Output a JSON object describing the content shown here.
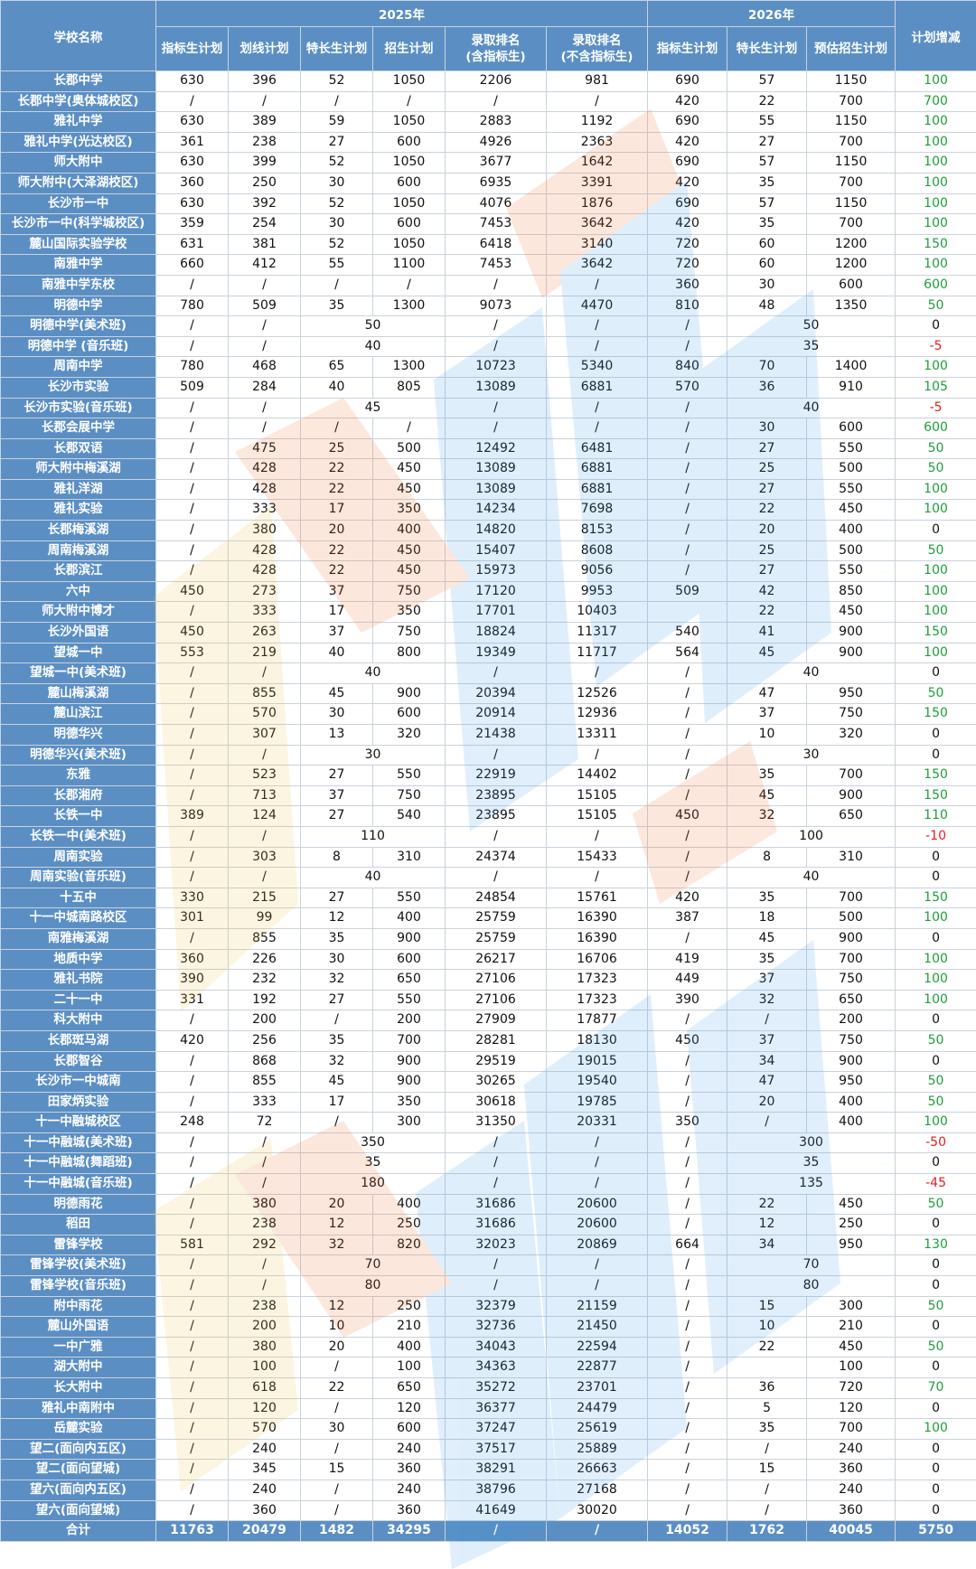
{
  "header": {
    "school_name": "学校名称",
    "year_2025": "2025年",
    "year_2026": "2026年",
    "plan_change": "计划增减",
    "cols_2025": [
      "指标生计划",
      "划线计划",
      "特长生计划",
      "招生计划",
      "录取排名\n(含指标生)",
      "录取排名\n(不含指标生)"
    ],
    "cols_2026": [
      "指标生计划",
      "特长生计划",
      "预估招生计划"
    ]
  },
  "rows": [
    [
      "长郡中学",
      "630",
      "396",
      "52",
      "1050",
      "2206",
      "981",
      "690",
      "57",
      "1150",
      "100"
    ],
    [
      "长郡中学(奥体城校区)",
      "/",
      "/",
      "/",
      "/",
      "/",
      "/",
      "420",
      "22",
      "700",
      "700"
    ],
    [
      "雅礼中学",
      "630",
      "389",
      "59",
      "1050",
      "2883",
      "1192",
      "690",
      "55",
      "1150",
      "100"
    ],
    [
      "雅礼中学(光达校区)",
      "361",
      "238",
      "27",
      "600",
      "4926",
      "2363",
      "420",
      "27",
      "700",
      "100"
    ],
    [
      "师大附中",
      "630",
      "399",
      "52",
      "1050",
      "3677",
      "1642",
      "690",
      "57",
      "1150",
      "100"
    ],
    [
      "师大附中(大泽湖校区)",
      "360",
      "250",
      "30",
      "600",
      "6935",
      "3391",
      "420",
      "35",
      "700",
      "100"
    ],
    [
      "长沙市一中",
      "630",
      "392",
      "52",
      "1050",
      "4076",
      "1876",
      "690",
      "57",
      "1150",
      "100"
    ],
    [
      "长沙市一中(科学城校区)",
      "359",
      "254",
      "30",
      "600",
      "7453",
      "3642",
      "420",
      "35",
      "700",
      "100"
    ],
    [
      "麓山国际实验学校",
      "631",
      "381",
      "52",
      "1050",
      "6418",
      "3140",
      "720",
      "60",
      "1200",
      "150"
    ],
    [
      "南雅中学",
      "660",
      "412",
      "55",
      "1100",
      "7453",
      "3642",
      "720",
      "60",
      "1200",
      "100"
    ],
    [
      "南雅中学东校",
      "/",
      "/",
      "/",
      "/",
      "/",
      "/",
      "360",
      "30",
      "600",
      "600"
    ],
    [
      "明德中学",
      "780",
      "509",
      "35",
      "1300",
      "9073",
      "4470",
      "810",
      "48",
      "1350",
      "50"
    ],
    [
      "明德中学(美术班)",
      "/",
      "/",
      "@50",
      "/",
      "/",
      "/",
      "@50",
      "0"
    ],
    [
      "明德中学 (音乐班)",
      "/",
      "/",
      "@40",
      "/",
      "/",
      "/",
      "@35",
      "-5"
    ],
    [
      "周南中学",
      "780",
      "468",
      "65",
      "1300",
      "10723",
      "5340",
      "840",
      "70",
      "1400",
      "100"
    ],
    [
      "长沙市实验",
      "509",
      "284",
      "40",
      "805",
      "13089",
      "6881",
      "570",
      "36",
      "910",
      "105"
    ],
    [
      "长沙市实验(音乐班)",
      "/",
      "/",
      "@45",
      "/",
      "/",
      "/",
      "@40",
      "-5"
    ],
    [
      "长郡会展中学",
      "/",
      "/",
      "/",
      "/",
      "/",
      "/",
      "/",
      "30",
      "600",
      "600"
    ],
    [
      "长郡双语",
      "/",
      "475",
      "25",
      "500",
      "12492",
      "6481",
      "/",
      "27",
      "550",
      "50"
    ],
    [
      "师大附中梅溪湖",
      "/",
      "428",
      "22",
      "450",
      "13089",
      "6881",
      "/",
      "25",
      "500",
      "50"
    ],
    [
      "雅礼洋湖",
      "/",
      "428",
      "22",
      "450",
      "13089",
      "6881",
      "/",
      "27",
      "550",
      "100"
    ],
    [
      "雅礼实验",
      "/",
      "333",
      "17",
      "350",
      "14234",
      "7698",
      "/",
      "22",
      "450",
      "100"
    ],
    [
      "长郡梅溪湖",
      "/",
      "380",
      "20",
      "400",
      "14820",
      "8153",
      "/",
      "20",
      "400",
      "0"
    ],
    [
      "周南梅溪湖",
      "/",
      "428",
      "22",
      "450",
      "15407",
      "8608",
      "/",
      "25",
      "500",
      "50"
    ],
    [
      "长郡滨江",
      "/",
      "428",
      "22",
      "450",
      "15973",
      "9056",
      "/",
      "27",
      "550",
      "100"
    ],
    [
      "六中",
      "450",
      "273",
      "37",
      "750",
      "17120",
      "9953",
      "509",
      "42",
      "850",
      "100"
    ],
    [
      "师大附中博才",
      "/",
      "333",
      "17",
      "350",
      "17701",
      "10403",
      "",
      "22",
      "450",
      "100"
    ],
    [
      "长沙外国语",
      "450",
      "263",
      "37",
      "750",
      "18824",
      "11317",
      "540",
      "41",
      "900",
      "150"
    ],
    [
      "望城一中",
      "553",
      "219",
      "40",
      "800",
      "19349",
      "11717",
      "564",
      "45",
      "900",
      "100"
    ],
    [
      "望城一中(美术班)",
      "/",
      "/",
      "@40",
      "/",
      "/",
      "/",
      "@40",
      "0"
    ],
    [
      "麓山梅溪湖",
      "/",
      "855",
      "45",
      "900",
      "20394",
      "12526",
      "/",
      "47",
      "950",
      "50"
    ],
    [
      "麓山滨江",
      "/",
      "570",
      "30",
      "600",
      "20914",
      "12936",
      "/",
      "37",
      "750",
      "150"
    ],
    [
      "明德华兴",
      "/",
      "307",
      "13",
      "320",
      "21438",
      "13311",
      "/",
      "10",
      "320",
      "0"
    ],
    [
      "明德华兴(美术班)",
      "/",
      "/",
      "@30",
      "/",
      "/",
      "/",
      "@30",
      "0"
    ],
    [
      "东雅",
      "/",
      "523",
      "27",
      "550",
      "22919",
      "14402",
      "/",
      "35",
      "700",
      "150"
    ],
    [
      "长郡湘府",
      "/",
      "713",
      "37",
      "750",
      "23895",
      "15105",
      "/",
      "45",
      "900",
      "150"
    ],
    [
      "长铁一中",
      "389",
      "124",
      "27",
      "540",
      "23895",
      "15105",
      "450",
      "32",
      "650",
      "110"
    ],
    [
      "长铁一中(美术班)",
      "/",
      "/",
      "@110",
      "/",
      "/",
      "/",
      "@100",
      "-10"
    ],
    [
      "周南实验",
      "/",
      "303",
      "8",
      "310",
      "24374",
      "15433",
      "/",
      "8",
      "310",
      "0"
    ],
    [
      "周南实验(音乐班)",
      "/",
      "/",
      "@40",
      "/",
      "/",
      "/",
      "@40",
      "0"
    ],
    [
      "十五中",
      "330",
      "215",
      "27",
      "550",
      "24854",
      "15761",
      "420",
      "35",
      "700",
      "150"
    ],
    [
      "十一中城南路校区",
      "301",
      "99",
      "12",
      "400",
      "25759",
      "16390",
      "387",
      "18",
      "500",
      "100"
    ],
    [
      "南雅梅溪湖",
      "/",
      "855",
      "35",
      "900",
      "25759",
      "16390",
      "/",
      "45",
      "900",
      "0"
    ],
    [
      "地质中学",
      "360",
      "226",
      "30",
      "600",
      "26217",
      "16706",
      "419",
      "35",
      "700",
      "100"
    ],
    [
      "雅礼书院",
      "390",
      "232",
      "32",
      "650",
      "27106",
      "17323",
      "449",
      "37",
      "750",
      "100"
    ],
    [
      "二十一中",
      "331",
      "192",
      "27",
      "550",
      "27106",
      "17323",
      "390",
      "32",
      "650",
      "100"
    ],
    [
      "科大附中",
      "/",
      "200",
      "/",
      "200",
      "27909",
      "17877",
      "/",
      "/",
      "200",
      "0"
    ],
    [
      "长郡斑马湖",
      "420",
      "256",
      "35",
      "700",
      "28281",
      "18130",
      "450",
      "37",
      "750",
      "50"
    ],
    [
      "长郡智谷",
      "/",
      "868",
      "32",
      "900",
      "29519",
      "19015",
      "/",
      "34",
      "900",
      "0"
    ],
    [
      "长沙市一中城南",
      "/",
      "855",
      "45",
      "900",
      "30265",
      "19540",
      "/",
      "47",
      "950",
      "50"
    ],
    [
      "田家炳实验",
      "/",
      "333",
      "17",
      "350",
      "30618",
      "19785",
      "/",
      "20",
      "400",
      "50"
    ],
    [
      "十一中融城校区",
      "248",
      "72",
      "/",
      "300",
      "31350",
      "20331",
      "350",
      "/",
      "400",
      "100"
    ],
    [
      "十一中融城(美术班)",
      "/",
      "/",
      "@350",
      "/",
      "/",
      "/",
      "@300",
      "-50"
    ],
    [
      "十一中融城(舞蹈班)",
      "/",
      "/",
      "@35",
      "/",
      "/",
      "/",
      "@35",
      "0"
    ],
    [
      "十一中融城(音乐班)",
      "/",
      "/",
      "@180",
      "/",
      "/",
      "/",
      "@135",
      "-45"
    ],
    [
      "明德雨花",
      "/",
      "380",
      "20",
      "400",
      "31686",
      "20600",
      "/",
      "22",
      "450",
      "50"
    ],
    [
      "稻田",
      "/",
      "238",
      "12",
      "250",
      "31686",
      "20600",
      "/",
      "12",
      "250",
      "0"
    ],
    [
      "雷锋学校",
      "581",
      "292",
      "32",
      "820",
      "32023",
      "20869",
      "664",
      "34",
      "950",
      "130"
    ],
    [
      "雷锋学校(美术班)",
      "/",
      "/",
      "@70",
      "/",
      "/",
      "/",
      "@70",
      "0"
    ],
    [
      "雷锋学校(音乐班)",
      "/",
      "/",
      "@80",
      "/",
      "/",
      "/",
      "@80",
      "0"
    ],
    [
      "附中雨花",
      "/",
      "238",
      "12",
      "250",
      "32379",
      "21159",
      "/",
      "15",
      "300",
      "50"
    ],
    [
      "麓山外国语",
      "/",
      "200",
      "10",
      "210",
      "32736",
      "21450",
      "/",
      "10",
      "210",
      "0"
    ],
    [
      "一中广雅",
      "/",
      "380",
      "20",
      "400",
      "34043",
      "22594",
      "/",
      "22",
      "450",
      "50"
    ],
    [
      "湖大附中",
      "/",
      "100",
      "/",
      "100",
      "34363",
      "22877",
      "/",
      "",
      "100",
      "0"
    ],
    [
      "长大附中",
      "/",
      "618",
      "22",
      "650",
      "35272",
      "23701",
      "/",
      "36",
      "720",
      "70"
    ],
    [
      "雅礼中南附中",
      "/",
      "120",
      "/",
      "120",
      "36377",
      "24479",
      "/",
      "5",
      "120",
      "0"
    ],
    [
      "岳麓实验",
      "/",
      "570",
      "30",
      "600",
      "37247",
      "25619",
      "/",
      "35",
      "700",
      "100"
    ],
    [
      "望二(面向内五区)",
      "/",
      "240",
      "/",
      "240",
      "37517",
      "25889",
      "/",
      "/",
      "240",
      "0"
    ],
    [
      "望二(面向望城)",
      "/",
      "345",
      "15",
      "360",
      "38291",
      "26663",
      "/",
      "15",
      "360",
      "0"
    ],
    [
      "望六(面向内五区)",
      "/",
      "240",
      "/",
      "240",
      "38796",
      "27168",
      "/",
      "/",
      "240",
      "0"
    ],
    [
      "望六(面向望城)",
      "/",
      "360",
      "/",
      "360",
      "41649",
      "30020",
      "/",
      "/",
      "360",
      "0"
    ]
  ],
  "total": [
    "合计",
    "11763",
    "20479",
    "1482",
    "34295",
    "/",
    "/",
    "14052",
    "1762",
    "40045",
    "5750"
  ],
  "colors": {
    "header_bg": "#5b8fc4",
    "positive": "#1e9e3b",
    "negative": "#e02020"
  }
}
